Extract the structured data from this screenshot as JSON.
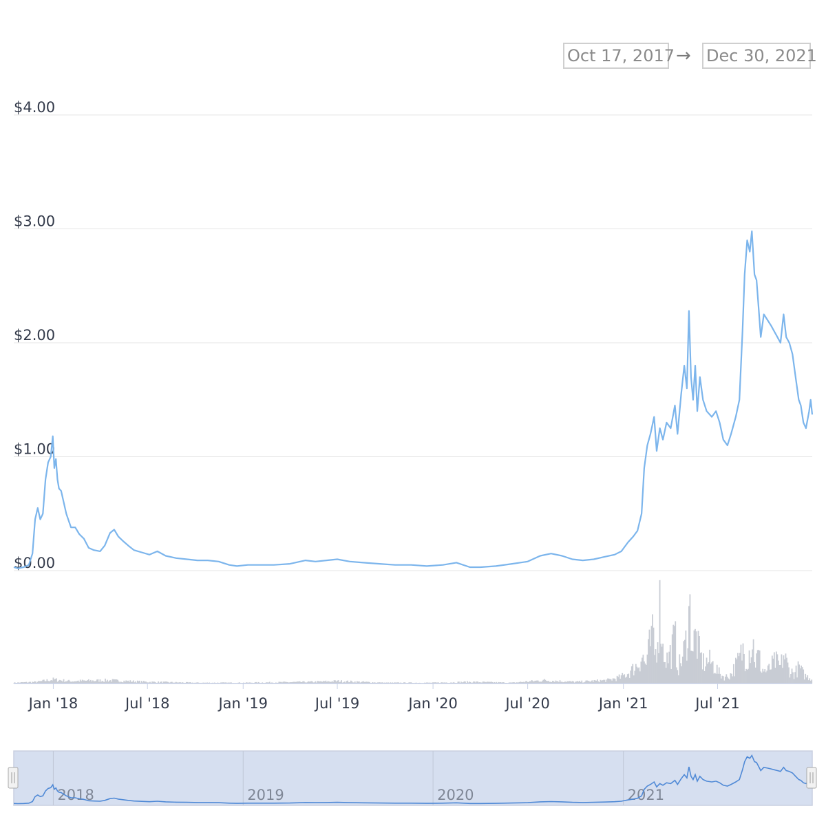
{
  "date_range": {
    "from": "Oct 17, 2017",
    "arrow": "→",
    "to": "Dec 30, 2021"
  },
  "colors": {
    "price_line": "#7cb5ec",
    "volume": "#c8ccd4",
    "grid": "#e6e6e6",
    "navigator_fill": "#d6dff0"
  },
  "chart_data": {
    "type": "line",
    "title": "",
    "xlabel": "",
    "ylabel": "",
    "x_range": [
      "2017-10-17",
      "2021-12-30"
    ],
    "ylim": [
      0,
      4
    ],
    "y_ticks": [
      {
        "value": 4,
        "label": "$4.00"
      },
      {
        "value": 3,
        "label": "$3.00"
      },
      {
        "value": 2,
        "label": "$2.00"
      },
      {
        "value": 1,
        "label": "$1.00"
      },
      {
        "value": 0,
        "label": "$0.00"
      }
    ],
    "x_ticks": [
      {
        "date": "2018-01-01",
        "label": "Jan '18"
      },
      {
        "date": "2018-07-01",
        "label": "Jul '18"
      },
      {
        "date": "2019-01-01",
        "label": "Jan '19"
      },
      {
        "date": "2019-07-01",
        "label": "Jul '19"
      },
      {
        "date": "2020-01-01",
        "label": "Jan '20"
      },
      {
        "date": "2020-07-01",
        "label": "Jul '20"
      },
      {
        "date": "2021-01-01",
        "label": "Jan '21"
      },
      {
        "date": "2021-07-01",
        "label": "Jul '21"
      }
    ],
    "navigator_ticks": [
      {
        "date": "2018-01-01",
        "label": "2018"
      },
      {
        "date": "2019-01-01",
        "label": "2019"
      },
      {
        "date": "2020-01-01",
        "label": "2020"
      },
      {
        "date": "2021-01-01",
        "label": "2021"
      }
    ],
    "grid": true,
    "legend": "none",
    "series": [
      {
        "values": [
          [
            "2017-10-17",
            0.03
          ],
          [
            "2017-10-25",
            0.02
          ],
          [
            "2017-11-05",
            0.03
          ],
          [
            "2017-11-15",
            0.05
          ],
          [
            "2017-11-22",
            0.15
          ],
          [
            "2017-11-27",
            0.45
          ],
          [
            "2017-12-02",
            0.55
          ],
          [
            "2017-12-07",
            0.45
          ],
          [
            "2017-12-12",
            0.5
          ],
          [
            "2017-12-17",
            0.8
          ],
          [
            "2017-12-22",
            0.95
          ],
          [
            "2017-12-27",
            1.0
          ],
          [
            "2017-12-31",
            1.18
          ],
          [
            "2018-01-03",
            0.9
          ],
          [
            "2018-01-06",
            0.98
          ],
          [
            "2018-01-09",
            0.8
          ],
          [
            "2018-01-12",
            0.72
          ],
          [
            "2018-01-16",
            0.7
          ],
          [
            "2018-01-20",
            0.62
          ],
          [
            "2018-01-26",
            0.5
          ],
          [
            "2018-02-04",
            0.38
          ],
          [
            "2018-02-12",
            0.38
          ],
          [
            "2018-02-20",
            0.32
          ],
          [
            "2018-03-01",
            0.28
          ],
          [
            "2018-03-10",
            0.2
          ],
          [
            "2018-03-20",
            0.18
          ],
          [
            "2018-04-01",
            0.17
          ],
          [
            "2018-04-10",
            0.22
          ],
          [
            "2018-04-20",
            0.33
          ],
          [
            "2018-04-28",
            0.36
          ],
          [
            "2018-05-06",
            0.3
          ],
          [
            "2018-05-15",
            0.26
          ],
          [
            "2018-05-25",
            0.22
          ],
          [
            "2018-06-05",
            0.18
          ],
          [
            "2018-06-20",
            0.16
          ],
          [
            "2018-07-05",
            0.14
          ],
          [
            "2018-07-20",
            0.17
          ],
          [
            "2018-08-05",
            0.13
          ],
          [
            "2018-08-25",
            0.11
          ],
          [
            "2018-09-15",
            0.1
          ],
          [
            "2018-10-05",
            0.09
          ],
          [
            "2018-10-25",
            0.09
          ],
          [
            "2018-11-15",
            0.08
          ],
          [
            "2018-12-05",
            0.05
          ],
          [
            "2018-12-20",
            0.04
          ],
          [
            "2019-01-10",
            0.05
          ],
          [
            "2019-02-01",
            0.05
          ],
          [
            "2019-03-01",
            0.05
          ],
          [
            "2019-04-01",
            0.06
          ],
          [
            "2019-05-01",
            0.09
          ],
          [
            "2019-05-20",
            0.08
          ],
          [
            "2019-06-10",
            0.09
          ],
          [
            "2019-07-01",
            0.1
          ],
          [
            "2019-07-25",
            0.08
          ],
          [
            "2019-08-20",
            0.07
          ],
          [
            "2019-09-20",
            0.06
          ],
          [
            "2019-10-20",
            0.05
          ],
          [
            "2019-11-20",
            0.05
          ],
          [
            "2019-12-20",
            0.04
          ],
          [
            "2020-01-20",
            0.05
          ],
          [
            "2020-02-15",
            0.07
          ],
          [
            "2020-03-12",
            0.03
          ],
          [
            "2020-04-01",
            0.03
          ],
          [
            "2020-05-01",
            0.04
          ],
          [
            "2020-06-01",
            0.06
          ],
          [
            "2020-07-01",
            0.08
          ],
          [
            "2020-07-25",
            0.13
          ],
          [
            "2020-08-15",
            0.15
          ],
          [
            "2020-09-05",
            0.13
          ],
          [
            "2020-09-25",
            0.1
          ],
          [
            "2020-10-15",
            0.09
          ],
          [
            "2020-11-05",
            0.1
          ],
          [
            "2020-11-25",
            0.12
          ],
          [
            "2020-12-15",
            0.14
          ],
          [
            "2020-12-28",
            0.17
          ],
          [
            "2021-01-10",
            0.25
          ],
          [
            "2021-01-20",
            0.3
          ],
          [
            "2021-01-28",
            0.35
          ],
          [
            "2021-02-05",
            0.5
          ],
          [
            "2021-02-10",
            0.9
          ],
          [
            "2021-02-16",
            1.1
          ],
          [
            "2021-02-22",
            1.2
          ],
          [
            "2021-03-01",
            1.35
          ],
          [
            "2021-03-06",
            1.05
          ],
          [
            "2021-03-12",
            1.25
          ],
          [
            "2021-03-18",
            1.15
          ],
          [
            "2021-03-25",
            1.3
          ],
          [
            "2021-04-02",
            1.25
          ],
          [
            "2021-04-10",
            1.45
          ],
          [
            "2021-04-15",
            1.2
          ],
          [
            "2021-04-22",
            1.55
          ],
          [
            "2021-04-28",
            1.8
          ],
          [
            "2021-05-03",
            1.6
          ],
          [
            "2021-05-07",
            2.28
          ],
          [
            "2021-05-11",
            1.7
          ],
          [
            "2021-05-15",
            1.5
          ],
          [
            "2021-05-19",
            1.8
          ],
          [
            "2021-05-23",
            1.4
          ],
          [
            "2021-05-28",
            1.7
          ],
          [
            "2021-06-03",
            1.5
          ],
          [
            "2021-06-10",
            1.4
          ],
          [
            "2021-06-20",
            1.35
          ],
          [
            "2021-06-28",
            1.4
          ],
          [
            "2021-07-05",
            1.3
          ],
          [
            "2021-07-12",
            1.15
          ],
          [
            "2021-07-20",
            1.1
          ],
          [
            "2021-07-27",
            1.2
          ],
          [
            "2021-08-05",
            1.35
          ],
          [
            "2021-08-12",
            1.5
          ],
          [
            "2021-08-18",
            2.1
          ],
          [
            "2021-08-22",
            2.6
          ],
          [
            "2021-08-27",
            2.9
          ],
          [
            "2021-09-01",
            2.8
          ],
          [
            "2021-09-05",
            2.98
          ],
          [
            "2021-09-10",
            2.6
          ],
          [
            "2021-09-14",
            2.55
          ],
          [
            "2021-09-18",
            2.3
          ],
          [
            "2021-09-22",
            2.05
          ],
          [
            "2021-09-28",
            2.25
          ],
          [
            "2021-10-05",
            2.2
          ],
          [
            "2021-10-12",
            2.15
          ],
          [
            "2021-10-18",
            2.1
          ],
          [
            "2021-10-24",
            2.05
          ],
          [
            "2021-10-30",
            2.0
          ],
          [
            "2021-11-05",
            2.25
          ],
          [
            "2021-11-10",
            2.05
          ],
          [
            "2021-11-16",
            2.0
          ],
          [
            "2021-11-22",
            1.9
          ],
          [
            "2021-11-28",
            1.7
          ],
          [
            "2021-12-04",
            1.5
          ],
          [
            "2021-12-08",
            1.45
          ],
          [
            "2021-12-13",
            1.3
          ],
          [
            "2021-12-18",
            1.25
          ],
          [
            "2021-12-24",
            1.4
          ],
          [
            "2021-12-27",
            1.5
          ],
          [
            "2021-12-30",
            1.37
          ]
        ]
      }
    ],
    "volume": {
      "values": [
        [
          "2017-10-17",
          0.01
        ],
        [
          "2017-12-01",
          0.02
        ],
        [
          "2017-12-31",
          0.05
        ],
        [
          "2018-02-01",
          0.03
        ],
        [
          "2018-04-15",
          0.04
        ],
        [
          "2018-07-01",
          0.02
        ],
        [
          "2018-10-01",
          0.01
        ],
        [
          "2019-01-01",
          0.01
        ],
        [
          "2019-05-15",
          0.02
        ],
        [
          "2019-07-01",
          0.03
        ],
        [
          "2019-10-01",
          0.01
        ],
        [
          "2020-01-01",
          0.01
        ],
        [
          "2020-03-12",
          0.02
        ],
        [
          "2020-06-01",
          0.01
        ],
        [
          "2020-08-01",
          0.04
        ],
        [
          "2020-10-01",
          0.02
        ],
        [
          "2020-12-01",
          0.04
        ],
        [
          "2020-12-28",
          0.08
        ],
        [
          "2021-01-15",
          0.15
        ],
        [
          "2021-01-30",
          0.25
        ],
        [
          "2021-02-06",
          0.35
        ],
        [
          "2021-02-13",
          0.22
        ],
        [
          "2021-02-20",
          0.45
        ],
        [
          "2021-02-28",
          0.6
        ],
        [
          "2021-03-03",
          0.3
        ],
        [
          "2021-03-08",
          0.68
        ],
        [
          "2021-03-13",
          1.0
        ],
        [
          "2021-03-18",
          0.42
        ],
        [
          "2021-03-26",
          0.3
        ],
        [
          "2021-04-03",
          0.4
        ],
        [
          "2021-04-10",
          0.58
        ],
        [
          "2021-04-16",
          0.2
        ],
        [
          "2021-04-24",
          0.3
        ],
        [
          "2021-05-01",
          0.5
        ],
        [
          "2021-05-06",
          0.85
        ],
        [
          "2021-05-10",
          0.88
        ],
        [
          "2021-05-14",
          0.42
        ],
        [
          "2021-05-20",
          0.6
        ],
        [
          "2021-05-28",
          0.35
        ],
        [
          "2021-06-05",
          0.25
        ],
        [
          "2021-06-15",
          0.28
        ],
        [
          "2021-06-25",
          0.22
        ],
        [
          "2021-07-05",
          0.12
        ],
        [
          "2021-07-15",
          0.08
        ],
        [
          "2021-07-25",
          0.1
        ],
        [
          "2021-08-05",
          0.22
        ],
        [
          "2021-08-12",
          0.3
        ],
        [
          "2021-08-19",
          0.42
        ],
        [
          "2021-08-26",
          0.3
        ],
        [
          "2021-09-02",
          0.45
        ],
        [
          "2021-09-07",
          0.52
        ],
        [
          "2021-09-12",
          0.28
        ],
        [
          "2021-09-18",
          0.35
        ],
        [
          "2021-09-24",
          0.18
        ],
        [
          "2021-10-05",
          0.15
        ],
        [
          "2021-10-20",
          0.28
        ],
        [
          "2021-10-30",
          0.2
        ],
        [
          "2021-11-05",
          0.36
        ],
        [
          "2021-11-15",
          0.18
        ],
        [
          "2021-11-25",
          0.12
        ],
        [
          "2021-12-05",
          0.2
        ],
        [
          "2021-12-15",
          0.1
        ],
        [
          "2021-12-30",
          0.06
        ]
      ]
    }
  }
}
